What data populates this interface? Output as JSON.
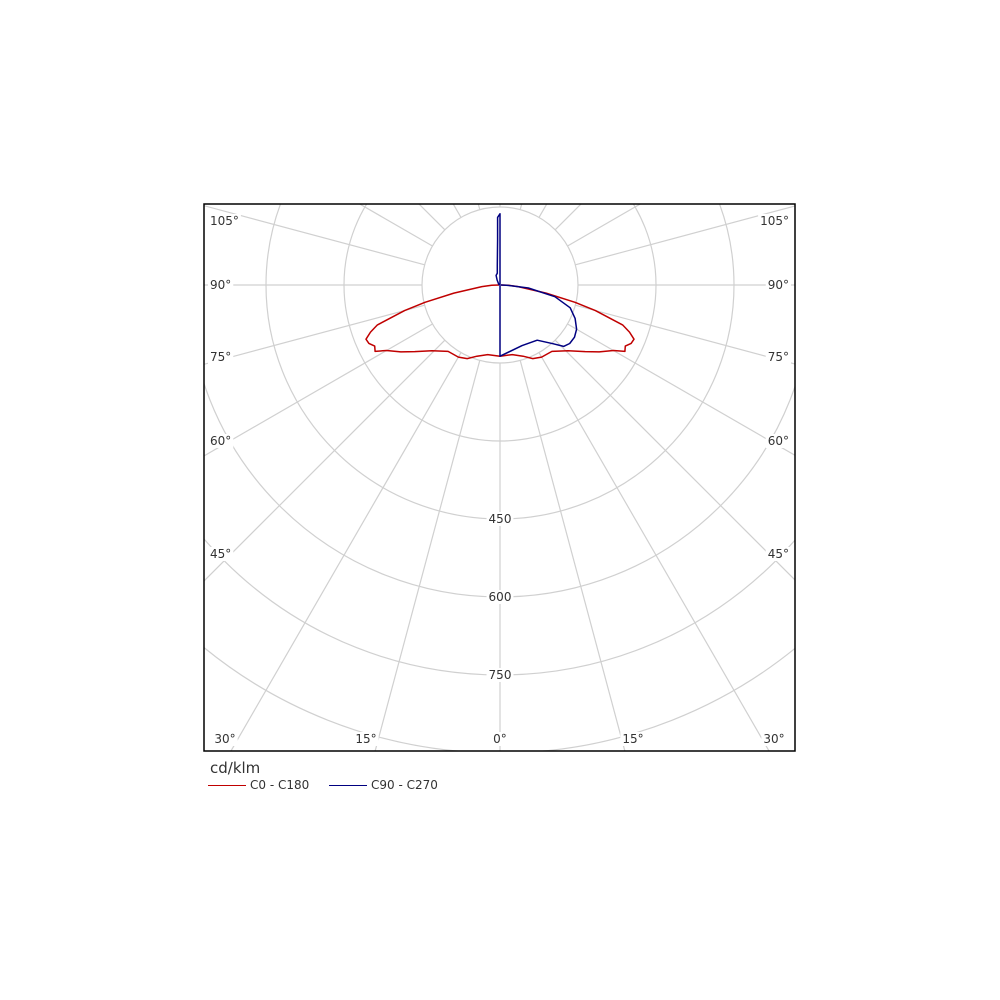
{
  "chart_data": {
    "type": "polar",
    "unit": "cd/klm",
    "angle_labels": {
      "left": [
        "105°",
        "90°",
        "75°",
        "60°",
        "45°"
      ],
      "right": [
        "105°",
        "90°",
        "75°",
        "60°",
        "45°"
      ],
      "bottom": [
        "30°",
        "15°",
        "0°",
        "15°",
        "30°"
      ]
    },
    "radial_ticks": [
      150,
      300,
      450,
      600,
      750,
      900
    ],
    "radial_labels": [
      "450",
      "600",
      "750"
    ],
    "angle_lines_deg": [
      0,
      15,
      30,
      45,
      60,
      75,
      90,
      105,
      120,
      135,
      150,
      165,
      180
    ],
    "grid": true,
    "series": [
      {
        "name": "C0 - C180",
        "color": "#c00000",
        "points": [
          [
            -90,
            2
          ],
          [
            -88,
            16
          ],
          [
            -85,
            35
          ],
          [
            -80,
            90
          ],
          [
            -77,
            148
          ],
          [
            -75,
            190
          ],
          [
            -72,
            248
          ],
          [
            -70,
            265
          ],
          [
            -68,
            278
          ],
          [
            -66,
            276
          ],
          [
            -64,
            268
          ],
          [
            -62,
            272
          ],
          [
            -60,
            252
          ],
          [
            -56,
            230
          ],
          [
            -52,
            208
          ],
          [
            -46,
            182
          ],
          [
            -38,
            162
          ],
          [
            -30,
            160
          ],
          [
            -24,
            155
          ],
          [
            -18,
            144
          ],
          [
            -10,
            136
          ],
          [
            0,
            137
          ],
          [
            10,
            136
          ],
          [
            18,
            144
          ],
          [
            24,
            155
          ],
          [
            30,
            160
          ],
          [
            38,
            162
          ],
          [
            46,
            182
          ],
          [
            52,
            208
          ],
          [
            56,
            230
          ],
          [
            60,
            252
          ],
          [
            62,
            272
          ],
          [
            64,
            268
          ],
          [
            66,
            276
          ],
          [
            68,
            278
          ],
          [
            70,
            265
          ],
          [
            72,
            248
          ],
          [
            75,
            190
          ],
          [
            77,
            148
          ],
          [
            80,
            90
          ],
          [
            85,
            35
          ],
          [
            88,
            16
          ],
          [
            90,
            2
          ]
        ]
      },
      {
        "name": "C90 - C270",
        "color": "#000080",
        "points": [
          [
            -90,
            2
          ],
          [
            -150,
            11
          ],
          [
            -158,
            20
          ],
          [
            -167,
            23
          ],
          [
            -172,
            37
          ],
          [
            -177,
            87
          ],
          [
            -178,
            130
          ],
          [
            -180,
            137
          ],
          [
            0,
            137
          ],
          [
            20,
            124
          ],
          [
            34,
            128
          ],
          [
            42,
            152
          ],
          [
            46,
            170
          ],
          [
            50,
            175
          ],
          [
            55,
            175
          ],
          [
            60,
            170
          ],
          [
            66,
            158
          ],
          [
            72,
            142
          ],
          [
            78,
            108
          ],
          [
            84,
            55
          ],
          [
            88,
            12
          ],
          [
            90,
            2
          ]
        ]
      }
    ]
  }
}
